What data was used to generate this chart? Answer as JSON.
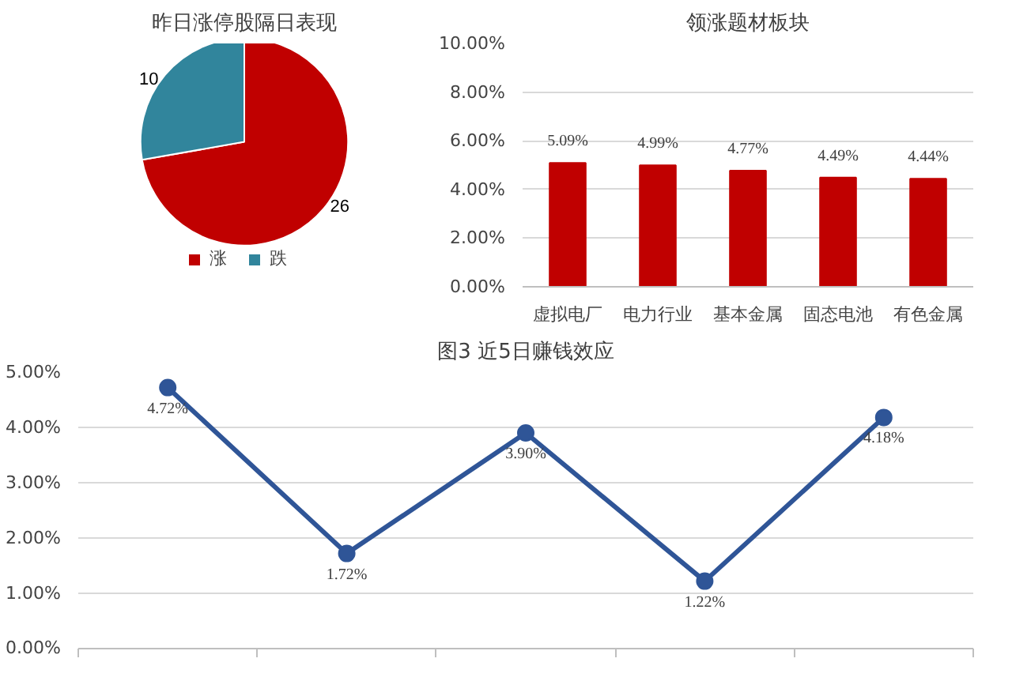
{
  "chart_data": [
    {
      "type": "pie",
      "title": "昨日涨停股隔日表现",
      "categories": [
        "涨",
        "跌"
      ],
      "values": [
        26,
        10
      ],
      "colors": [
        "#c00000",
        "#31859c"
      ],
      "data_labels": true,
      "legend": "bottom"
    },
    {
      "type": "bar",
      "title": "领涨题材板块",
      "categories": [
        "虚拟电厂",
        "电力行业",
        "基本金属",
        "固态电池",
        "有色金属"
      ],
      "values": [
        5.09,
        4.99,
        4.77,
        4.49,
        4.44
      ],
      "value_labels": [
        "5.09%",
        "4.99%",
        "4.77%",
        "4.49%",
        "4.44%"
      ],
      "color": "#c00000",
      "ylim": [
        0,
        10
      ],
      "yticks": [
        {
          "value": 0,
          "label": "0.00%"
        },
        {
          "value": 2,
          "label": "2.00%"
        },
        {
          "value": 4,
          "label": "4.00%"
        },
        {
          "value": 6,
          "label": "6.00%"
        },
        {
          "value": 8,
          "label": "8.00%"
        },
        {
          "value": 10,
          "label": "10.00%"
        }
      ],
      "grid": "y"
    },
    {
      "type": "line",
      "title": "图3 近5日赚钱效应",
      "categories": [
        null,
        null,
        null,
        null,
        null
      ],
      "values": [
        4.72,
        1.72,
        3.9,
        1.22,
        4.18
      ],
      "value_labels": [
        "4.72%",
        "1.72%",
        "3.90%",
        "1.22%",
        "4.18%"
      ],
      "color": "#2f5597",
      "marker": "circle",
      "ylim": [
        0,
        5
      ],
      "yticks": [
        {
          "value": 0,
          "label": "0.00%"
        },
        {
          "value": 1,
          "label": "1.00%"
        },
        {
          "value": 2,
          "label": "2.00%"
        },
        {
          "value": 3,
          "label": "3.00%"
        },
        {
          "value": 4,
          "label": "4.00%"
        },
        {
          "value": 5,
          "label": "5.00%"
        }
      ],
      "grid": "y",
      "tick_labels": "y"
    }
  ]
}
